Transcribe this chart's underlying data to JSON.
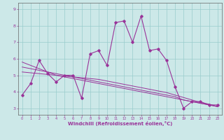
{
  "xlabel": "Windchill (Refroidissement éolien,°C)",
  "bg_color": "#cce8e8",
  "grid_color": "#99cccc",
  "line_color": "#993399",
  "bottom_bar_color": "#7700aa",
  "x": [
    0,
    1,
    2,
    3,
    4,
    5,
    6,
    7,
    8,
    9,
    10,
    11,
    12,
    13,
    14,
    15,
    16,
    17,
    18,
    19,
    20,
    21,
    22,
    23
  ],
  "y_main": [
    3.8,
    4.5,
    5.9,
    5.1,
    4.6,
    5.0,
    5.0,
    3.6,
    6.3,
    6.5,
    5.6,
    8.2,
    8.3,
    7.0,
    8.6,
    6.5,
    6.6,
    5.9,
    4.3,
    3.0,
    3.4,
    3.4,
    3.2,
    3.2
  ],
  "y_trend1": [
    5.8,
    5.6,
    5.4,
    5.2,
    5.0,
    4.9,
    4.8,
    4.7,
    4.6,
    4.5,
    4.4,
    4.3,
    4.2,
    4.1,
    4.0,
    3.9,
    3.8,
    3.7,
    3.6,
    3.5,
    3.4,
    3.3,
    3.2,
    3.1
  ],
  "y_trend2": [
    5.5,
    5.4,
    5.3,
    5.2,
    5.1,
    5.0,
    4.9,
    4.8,
    4.7,
    4.6,
    4.5,
    4.4,
    4.3,
    4.2,
    4.1,
    4.0,
    3.9,
    3.8,
    3.7,
    3.5,
    3.4,
    3.3,
    3.2,
    3.1
  ],
  "y_trend3": [
    5.2,
    5.15,
    5.1,
    5.05,
    5.0,
    4.95,
    4.9,
    4.85,
    4.8,
    4.75,
    4.65,
    4.55,
    4.45,
    4.35,
    4.25,
    4.15,
    4.05,
    3.95,
    3.8,
    3.65,
    3.5,
    3.35,
    3.25,
    3.1
  ],
  "xlim": [
    -0.5,
    23.5
  ],
  "ylim": [
    2.6,
    9.4
  ],
  "yticks": [
    3,
    4,
    5,
    6,
    7,
    8,
    9
  ],
  "xticks": [
    0,
    1,
    2,
    3,
    4,
    5,
    6,
    7,
    8,
    9,
    10,
    11,
    12,
    13,
    14,
    15,
    16,
    17,
    18,
    19,
    20,
    21,
    22,
    23
  ]
}
